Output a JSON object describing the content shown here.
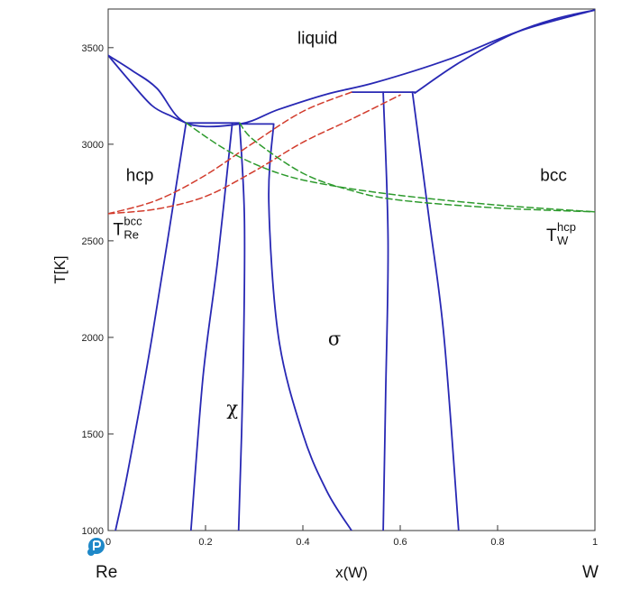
{
  "chart_data": {
    "type": "line",
    "title": "",
    "xlabel": "x(W)",
    "ylabel": "T[K]",
    "xlim": [
      0,
      1
    ],
    "ylim": [
      1000,
      3700
    ],
    "x_ticks": [
      0,
      0.2,
      0.4,
      0.6,
      0.8,
      1
    ],
    "x_tick_labels": [
      "0",
      "0.2",
      "0.4",
      "0.6",
      "0.8",
      "1"
    ],
    "y_ticks": [
      1000,
      1500,
      2000,
      2500,
      3000,
      3500
    ],
    "y_tick_labels": [
      "1000",
      "1500",
      "2000",
      "2500",
      "3000",
      "3500"
    ],
    "end_labels": {
      "left": "Re",
      "right": "W"
    },
    "phase_labels": [
      {
        "text": "liquid",
        "x": 0.43,
        "y": 3520
      },
      {
        "text": "hcp",
        "x": 0.065,
        "y": 2810
      },
      {
        "text": "bcc",
        "x": 0.915,
        "y": 2810
      },
      {
        "text": "σ",
        "x": 0.465,
        "y": 1960
      },
      {
        "text": "χ",
        "x": 0.255,
        "y": 1600
      }
    ],
    "reference_labels": [
      {
        "main": "T",
        "sub": "Re",
        "sup": "bcc",
        "x": 0.01,
        "y": 2530
      },
      {
        "main": "T",
        "sub": "W",
        "sup": "hcp",
        "x": 0.9,
        "y": 2500
      }
    ],
    "series": [
      {
        "name": "liquidus",
        "style": "stable",
        "color": "#2828b4",
        "points": [
          [
            0,
            3460
          ],
          [
            0.05,
            3380
          ],
          [
            0.1,
            3290
          ],
          [
            0.16,
            3110
          ],
          [
            0.27,
            3105
          ],
          [
            0.35,
            3180
          ],
          [
            0.45,
            3260
          ],
          [
            0.55,
            3320
          ],
          [
            0.7,
            3440
          ],
          [
            0.85,
            3590
          ],
          [
            1,
            3695
          ]
        ]
      },
      {
        "name": "solidus-hcp",
        "style": "stable",
        "color": "#2828b4",
        "points": [
          [
            0,
            3460
          ],
          [
            0.04,
            3340
          ],
          [
            0.09,
            3200
          ],
          [
            0.13,
            3145
          ],
          [
            0.16,
            3110
          ]
        ]
      },
      {
        "name": "solidus-bcc",
        "style": "stable",
        "color": "#2828b4",
        "points": [
          [
            0.63,
            3265
          ],
          [
            0.72,
            3420
          ],
          [
            0.83,
            3570
          ],
          [
            0.92,
            3650
          ],
          [
            1,
            3695
          ]
        ]
      },
      {
        "name": "peritectic-hcp-chi",
        "style": "stable",
        "color": "#2828b4",
        "points": [
          [
            0.16,
            3110
          ],
          [
            0.27,
            3110
          ]
        ]
      },
      {
        "name": "peritectic-chi-sigma",
        "style": "stable",
        "color": "#2828b4",
        "points": [
          [
            0.27,
            3105
          ],
          [
            0.34,
            3105
          ]
        ]
      },
      {
        "name": "peritectic-sigma-bcc",
        "style": "stable",
        "color": "#2828b4",
        "points": [
          [
            0.5,
            3270
          ],
          [
            0.63,
            3270
          ]
        ]
      },
      {
        "name": "hcp-solvus",
        "style": "stable",
        "color": "#2828b4",
        "points": [
          [
            0.16,
            3110
          ],
          [
            0.09,
            2000
          ],
          [
            0.04,
            1300
          ],
          [
            0.015,
            1000
          ]
        ]
      },
      {
        "name": "chi-left",
        "style": "stable",
        "color": "#2828b4",
        "points": [
          [
            0.255,
            3110
          ],
          [
            0.225,
            2400
          ],
          [
            0.195,
            1800
          ],
          [
            0.17,
            1000
          ]
        ]
      },
      {
        "name": "chi-right",
        "style": "stable",
        "color": "#2828b4",
        "points": [
          [
            0.27,
            3105
          ],
          [
            0.28,
            2600
          ],
          [
            0.277,
            1800
          ],
          [
            0.268,
            1000
          ]
        ]
      },
      {
        "name": "sigma-left",
        "style": "stable",
        "color": "#2828b4",
        "points": [
          [
            0.34,
            3105
          ],
          [
            0.33,
            2700
          ],
          [
            0.35,
            2000
          ],
          [
            0.4,
            1500
          ],
          [
            0.45,
            1200
          ],
          [
            0.5,
            1000
          ]
        ]
      },
      {
        "name": "sigma-right",
        "style": "stable",
        "color": "#2828b4",
        "points": [
          [
            0.565,
            3270
          ],
          [
            0.575,
            2500
          ],
          [
            0.57,
            1700
          ],
          [
            0.565,
            1000
          ]
        ]
      },
      {
        "name": "bcc-solvus",
        "style": "stable",
        "color": "#2828b4",
        "points": [
          [
            0.625,
            3270
          ],
          [
            0.66,
            2600
          ],
          [
            0.69,
            2000
          ],
          [
            0.72,
            1000
          ]
        ]
      },
      {
        "name": "metastable-bcc-1",
        "style": "metastable",
        "color": "#d23c2d",
        "points": [
          [
            0,
            2640
          ],
          [
            0.1,
            2710
          ],
          [
            0.2,
            2840
          ],
          [
            0.3,
            3010
          ],
          [
            0.4,
            3170
          ],
          [
            0.5,
            3270
          ]
        ]
      },
      {
        "name": "metastable-bcc-2",
        "style": "metastable",
        "color": "#d23c2d",
        "points": [
          [
            0,
            2640
          ],
          [
            0.1,
            2665
          ],
          [
            0.2,
            2730
          ],
          [
            0.3,
            2860
          ],
          [
            0.4,
            3010
          ],
          [
            0.5,
            3130
          ],
          [
            0.6,
            3255
          ]
        ]
      },
      {
        "name": "metastable-hcp-1",
        "style": "metastable",
        "color": "#2d9a2d",
        "points": [
          [
            0.27,
            3110
          ],
          [
            0.3,
            3020
          ],
          [
            0.4,
            2850
          ],
          [
            0.5,
            2760
          ],
          [
            0.6,
            2710
          ],
          [
            0.8,
            2670
          ],
          [
            1,
            2650
          ]
        ]
      },
      {
        "name": "metastable-hcp-2",
        "style": "metastable",
        "color": "#2d9a2d",
        "points": [
          [
            0.16,
            3110
          ],
          [
            0.25,
            2960
          ],
          [
            0.35,
            2850
          ],
          [
            0.45,
            2790
          ],
          [
            0.6,
            2735
          ],
          [
            0.8,
            2685
          ],
          [
            1,
            2650
          ]
        ]
      }
    ]
  }
}
